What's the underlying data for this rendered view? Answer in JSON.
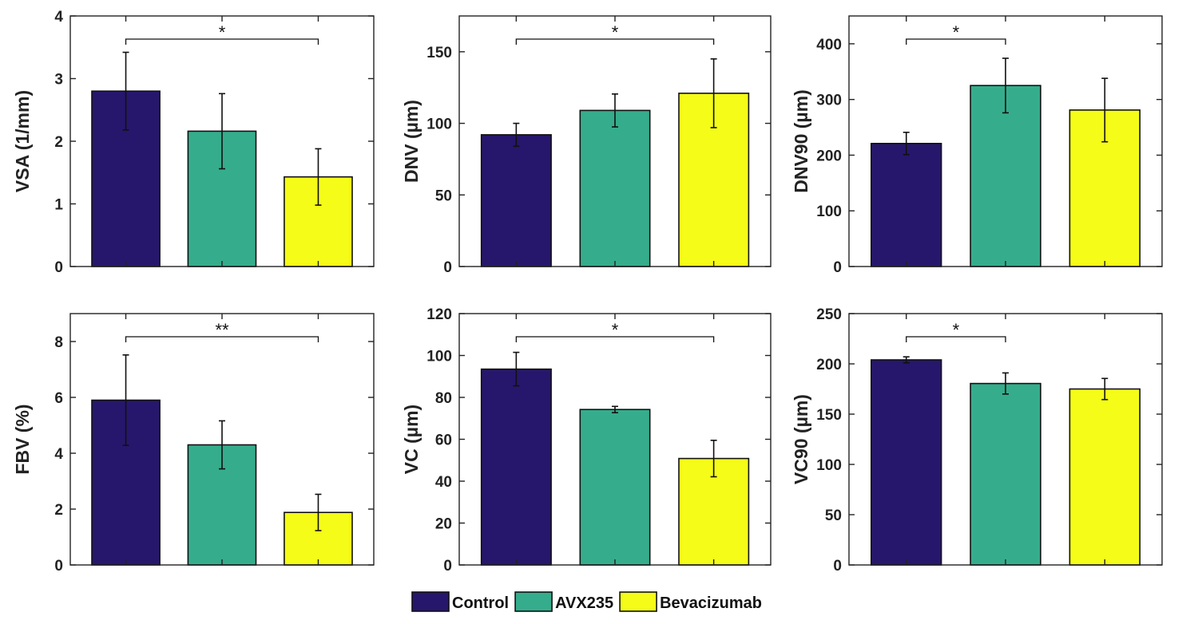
{
  "chart_data": [
    {
      "type": "bar",
      "title": "",
      "xlabel": "",
      "ylabel": "VSA (1/mm)",
      "ylim": [
        0,
        4
      ],
      "yticks": [
        0,
        1,
        2,
        3,
        4
      ],
      "categories": [
        "Control",
        "AVX235",
        "Bevacizumab"
      ],
      "values": [
        2.8,
        2.16,
        1.43
      ],
      "errors": [
        0.62,
        0.6,
        0.45
      ],
      "significance": [
        {
          "from": 0,
          "to": 2,
          "label": "*"
        }
      ]
    },
    {
      "type": "bar",
      "title": "",
      "xlabel": "",
      "ylabel": "DNV (µm)",
      "ylim": [
        0,
        175
      ],
      "yticks": [
        0,
        50,
        100,
        150
      ],
      "categories": [
        "Control",
        "AVX235",
        "Bevacizumab"
      ],
      "values": [
        92,
        109,
        121
      ],
      "errors": [
        8,
        11.5,
        24
      ],
      "significance": [
        {
          "from": 0,
          "to": 2,
          "label": "*"
        }
      ]
    },
    {
      "type": "bar",
      "title": "",
      "xlabel": "",
      "ylabel": "DNV90 (µm)",
      "ylim": [
        0,
        450
      ],
      "yticks": [
        0,
        100,
        200,
        300,
        400
      ],
      "categories": [
        "Control",
        "AVX235",
        "Bevacizumab"
      ],
      "values": [
        221,
        325,
        281
      ],
      "errors": [
        20,
        49,
        57
      ],
      "significance": [
        {
          "from": 0,
          "to": 1,
          "label": "*"
        }
      ]
    },
    {
      "type": "bar",
      "title": "",
      "xlabel": "",
      "ylabel": "FBV (%)",
      "ylim": [
        0,
        9
      ],
      "yticks": [
        0,
        2,
        4,
        6,
        8
      ],
      "categories": [
        "Control",
        "AVX235",
        "Bevacizumab"
      ],
      "values": [
        5.9,
        4.3,
        1.88
      ],
      "errors": [
        1.62,
        0.86,
        0.65
      ],
      "significance": [
        {
          "from": 0,
          "to": 2,
          "label": "**"
        }
      ]
    },
    {
      "type": "bar",
      "title": "",
      "xlabel": "",
      "ylabel": "VC (µm)",
      "ylim": [
        0,
        120
      ],
      "yticks": [
        0,
        20,
        40,
        60,
        80,
        100,
        120
      ],
      "categories": [
        "Control",
        "AVX235",
        "Bevacizumab"
      ],
      "values": [
        93.5,
        74.2,
        50.8
      ],
      "errors": [
        8,
        1.5,
        8.7
      ],
      "significance": [
        {
          "from": 0,
          "to": 2,
          "label": "*"
        }
      ]
    },
    {
      "type": "bar",
      "title": "",
      "xlabel": "",
      "ylabel": "VC90 (µm)",
      "ylim": [
        0,
        250
      ],
      "yticks": [
        0,
        50,
        100,
        150,
        200,
        250
      ],
      "categories": [
        "Control",
        "AVX235",
        "Bevacizumab"
      ],
      "values": [
        204,
        180.5,
        175
      ],
      "errors": [
        3,
        10.5,
        10.5
      ],
      "significance": [
        {
          "from": 0,
          "to": 1,
          "label": "*"
        }
      ]
    }
  ],
  "legend": {
    "position": "bottom-center",
    "items": [
      {
        "label": "Control",
        "color": "#27176c"
      },
      {
        "label": "AVX235",
        "color": "#35ad8c"
      },
      {
        "label": "Bevacizumab",
        "color": "#f4fc17"
      }
    ]
  }
}
